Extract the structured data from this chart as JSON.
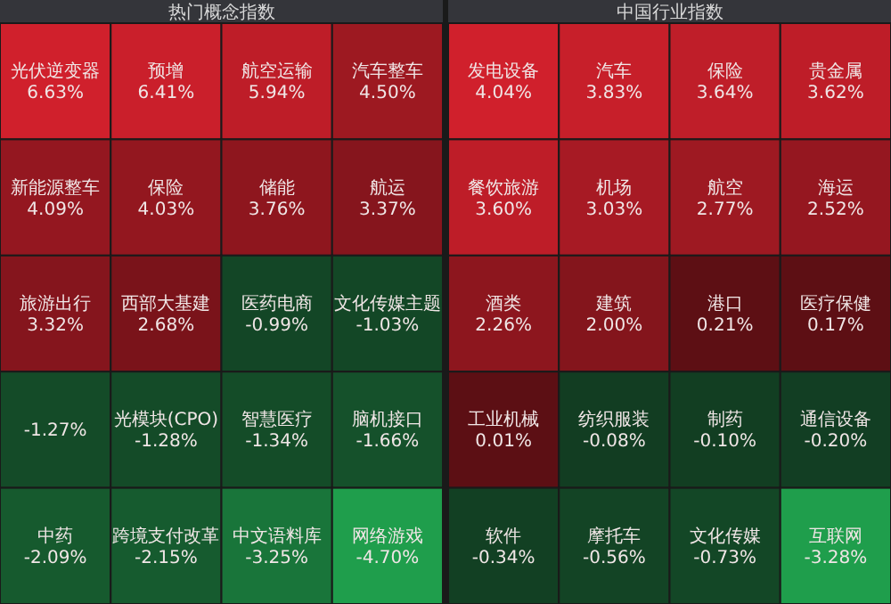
{
  "chart_data": [
    {
      "type": "other",
      "title": "热门概念指数",
      "categories": [
        "光伏逆变器",
        "预增",
        "航空运输",
        "汽车整车",
        "新能源整车",
        "保险",
        "储能",
        "航运",
        "旅游出行",
        "西部大基建",
        "医药电商",
        "文化传媒主题",
        null,
        "光模块(CPO)",
        "智慧医疗",
        "脑机接口",
        "中药",
        "跨境支付改革",
        "中文语料库",
        "网络游戏"
      ],
      "values": [
        6.63,
        6.41,
        5.94,
        4.5,
        4.09,
        4.03,
        3.76,
        3.37,
        3.32,
        2.68,
        -0.99,
        -1.03,
        -1.27,
        -1.28,
        -1.34,
        -1.66,
        -2.09,
        -2.15,
        -3.25,
        -4.7
      ],
      "value_labels": [
        "6.63%",
        "6.41%",
        "5.94%",
        "4.50%",
        "4.09%",
        "4.03%",
        "3.76%",
        "3.37%",
        "3.32%",
        "2.68%",
        "-0.99%",
        "-1.03%",
        "-1.27%",
        "-1.28%",
        "-1.34%",
        "-1.66%",
        "-2.09%",
        "-2.15%",
        "-3.25%",
        "-4.70%"
      ]
    },
    {
      "type": "other",
      "title": "中国行业指数",
      "categories": [
        "发电设备",
        "汽车",
        "保险",
        "贵金属",
        "餐饮旅游",
        "机场",
        "航空",
        "海运",
        "酒类",
        "建筑",
        "港口",
        "医疗保健",
        "工业机械",
        "纺织服装",
        "制药",
        "通信设备",
        "软件",
        "摩托车",
        "文化传媒",
        "互联网"
      ],
      "values": [
        4.04,
        3.83,
        3.64,
        3.62,
        3.6,
        3.03,
        2.77,
        2.52,
        2.26,
        2.0,
        0.21,
        0.17,
        0.01,
        -0.08,
        -0.1,
        -0.2,
        -0.34,
        -0.56,
        -0.73,
        -3.28
      ],
      "value_labels": [
        "4.04%",
        "3.83%",
        "3.64%",
        "3.62%",
        "3.60%",
        "3.03%",
        "2.77%",
        "2.52%",
        "2.26%",
        "2.00%",
        "0.21%",
        "0.17%",
        "0.01%",
        "-0.08%",
        "-0.10%",
        "-0.20%",
        "-0.34%",
        "-0.56%",
        "-0.73%",
        "-3.28%"
      ]
    }
  ]
}
